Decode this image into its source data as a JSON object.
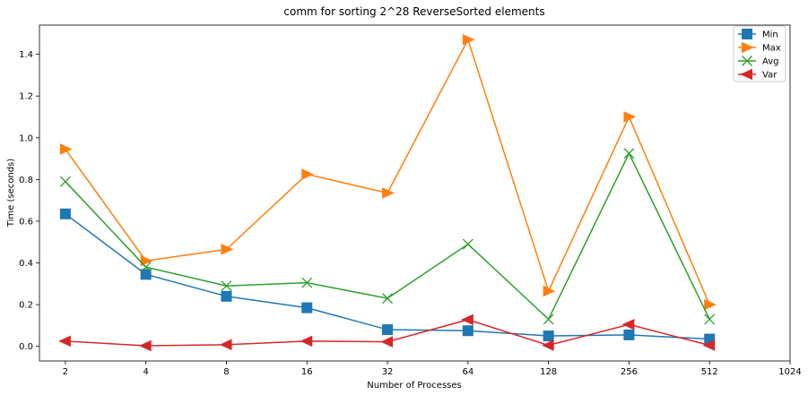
{
  "chart_data": {
    "type": "line",
    "title": "comm for sorting 2^28 ReverseSorted elements",
    "xlabel": "Number of Processes",
    "ylabel": "Time (seconds)",
    "x_scale": "log2",
    "x_ticks": [
      2,
      4,
      8,
      16,
      32,
      64,
      128,
      256,
      512,
      1024
    ],
    "x_tick_labels": [
      "2",
      "4",
      "8",
      "16",
      "32",
      "64",
      "128",
      "256",
      "512",
      "1024"
    ],
    "y_ticks": [
      0.0,
      0.2,
      0.4,
      0.6,
      0.8,
      1.0,
      1.2,
      1.4
    ],
    "y_tick_labels": [
      "0.0",
      "0.2",
      "0.4",
      "0.6",
      "0.8",
      "1.0",
      "1.2",
      "1.4"
    ],
    "ylim": [
      -0.07,
      1.54
    ],
    "xlim": [
      1.6,
      1024
    ],
    "grid": false,
    "legend_position": "top-right",
    "x": [
      2,
      4,
      8,
      16,
      32,
      64,
      128,
      256,
      512
    ],
    "series": [
      {
        "name": "Min",
        "color": "#1f77b4",
        "marker": "square",
        "values": [
          0.635,
          0.345,
          0.24,
          0.185,
          0.08,
          0.075,
          0.05,
          0.055,
          0.035
        ]
      },
      {
        "name": "Max",
        "color": "#ff7f0e",
        "marker": "triangle-right",
        "values": [
          0.945,
          0.41,
          0.465,
          0.825,
          0.735,
          1.47,
          0.265,
          1.1,
          0.2
        ]
      },
      {
        "name": "Avg",
        "color": "#2ca02c",
        "marker": "x",
        "values": [
          0.79,
          0.38,
          0.29,
          0.305,
          0.23,
          0.49,
          0.13,
          0.925,
          0.13
        ]
      },
      {
        "name": "Var",
        "color": "#d62728",
        "marker": "triangle-left",
        "values": [
          0.025,
          0.003,
          0.008,
          0.025,
          0.022,
          0.128,
          0.005,
          0.105,
          0.005
        ]
      }
    ]
  }
}
